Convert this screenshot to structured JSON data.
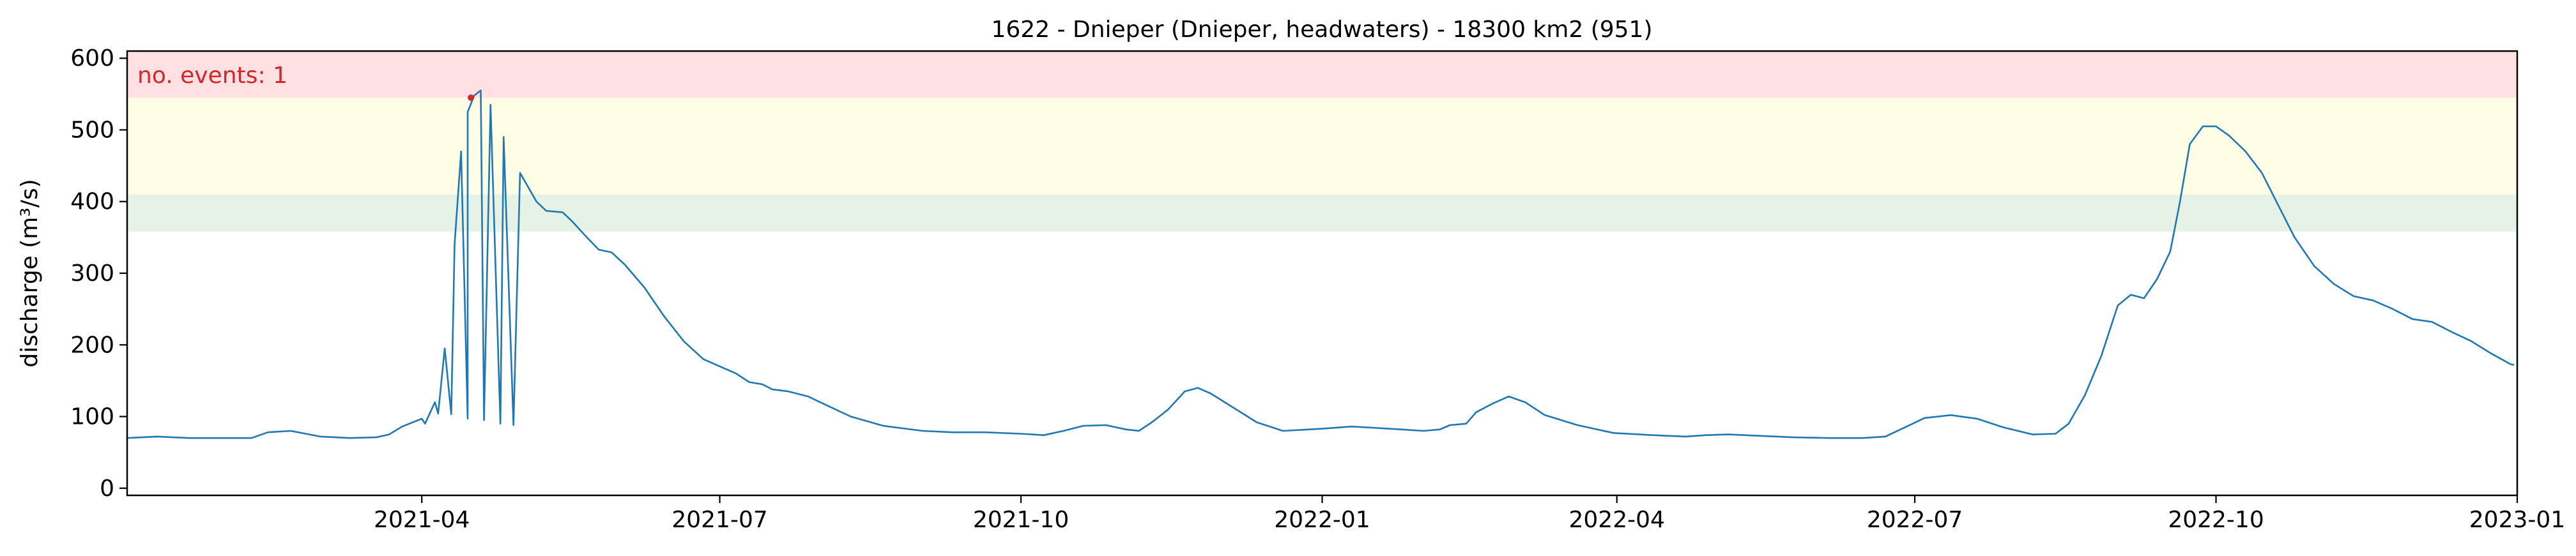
{
  "chart_data": {
    "type": "line",
    "title": "1622 - Dnieper (Dnieper, headwaters) - 18300 km2 (951)",
    "xlabel": "",
    "ylabel": "discharge (m³/s)",
    "xlim": [
      "2021-01-01",
      "2023-01-01"
    ],
    "ylim": [
      -10,
      610
    ],
    "x_ticks": [
      "2021-04",
      "2021-07",
      "2021-10",
      "2022-01",
      "2022-04",
      "2022-07",
      "2022-10",
      "2023-01"
    ],
    "y_ticks": [
      "0",
      "100",
      "200",
      "300",
      "400",
      "500",
      "600"
    ],
    "grid": false,
    "annotation": "no. events: 1",
    "colors": {
      "line": "#1f77b4",
      "event": "#d62728",
      "annotation": "#d62728",
      "band_severe": "#ffe0e3",
      "band_high": "#fffde6",
      "band_moderate": "#e5f2e5"
    },
    "threshold_bands": [
      {
        "from": 545,
        "to": 610,
        "color": "#ffe0e3"
      },
      {
        "from": 410,
        "to": 545,
        "color": "#fffde6"
      },
      {
        "from": 358,
        "to": 410,
        "color": "#e5f2e5"
      }
    ],
    "events": [
      {
        "x": "2021-04-16",
        "y": 545
      }
    ],
    "series": [
      {
        "points": [
          [
            "2021-01-01",
            70
          ],
          [
            "2021-01-10",
            72
          ],
          [
            "2021-01-20",
            70
          ],
          [
            "2021-02-01",
            70
          ],
          [
            "2021-02-08",
            70
          ],
          [
            "2021-02-13",
            78
          ],
          [
            "2021-02-20",
            80
          ],
          [
            "2021-03-01",
            72
          ],
          [
            "2021-03-10",
            70
          ],
          [
            "2021-03-18",
            71
          ],
          [
            "2021-03-22",
            75
          ],
          [
            "2021-03-26",
            86
          ],
          [
            "2021-04-01",
            97
          ],
          [
            "2021-04-06",
            104
          ],
          [
            "2021-04-10",
            103
          ],
          [
            "2021-04-15",
            97
          ],
          [
            "2021-04-20",
            95
          ],
          [
            "2021-04-25",
            90
          ],
          [
            "2021-04-29",
            88
          ],
          [
            "2021-04-02",
            90
          ],
          [
            "2021-04-05",
            120
          ],
          [
            "2021-04-08",
            195
          ],
          [
            "2021-04-11",
            340
          ],
          [
            "2021-04-13",
            470
          ],
          [
            "2021-04-15",
            525
          ],
          [
            "2021-04-17",
            548
          ],
          [
            "2021-04-19",
            555
          ],
          [
            "2021-04-22",
            535
          ],
          [
            "2021-04-26",
            490
          ],
          [
            "2021-05-01",
            440
          ],
          [
            "2021-05-06",
            400
          ],
          [
            "2021-05-09",
            387
          ],
          [
            "2021-05-14",
            385
          ],
          [
            "2021-05-17",
            372
          ],
          [
            "2021-05-21",
            352
          ],
          [
            "2021-05-25",
            333
          ],
          [
            "2021-05-29",
            329
          ],
          [
            "2021-06-02",
            312
          ],
          [
            "2021-06-08",
            280
          ],
          [
            "2021-06-14",
            240
          ],
          [
            "2021-06-20",
            205
          ],
          [
            "2021-06-26",
            180
          ],
          [
            "2021-07-01",
            170
          ],
          [
            "2021-07-06",
            160
          ],
          [
            "2021-07-10",
            148
          ],
          [
            "2021-07-14",
            145
          ],
          [
            "2021-07-17",
            138
          ],
          [
            "2021-07-22",
            135
          ],
          [
            "2021-07-28",
            128
          ],
          [
            "2021-08-03",
            115
          ],
          [
            "2021-08-10",
            100
          ],
          [
            "2021-08-20",
            87
          ],
          [
            "2021-09-01",
            80
          ],
          [
            "2021-09-10",
            78
          ],
          [
            "2021-09-20",
            78
          ],
          [
            "2021-10-01",
            76
          ],
          [
            "2021-10-08",
            74
          ],
          [
            "2021-10-14",
            80
          ],
          [
            "2021-10-20",
            87
          ],
          [
            "2021-10-27",
            88
          ],
          [
            "2021-11-02",
            82
          ],
          [
            "2021-11-06",
            80
          ],
          [
            "2021-11-10",
            92
          ],
          [
            "2021-11-15",
            110
          ],
          [
            "2021-11-20",
            135
          ],
          [
            "2021-11-24",
            140
          ],
          [
            "2021-11-28",
            132
          ],
          [
            "2021-12-05",
            112
          ],
          [
            "2021-12-12",
            92
          ],
          [
            "2021-12-20",
            80
          ],
          [
            "2022-01-01",
            83
          ],
          [
            "2022-01-10",
            86
          ],
          [
            "2022-01-18",
            84
          ],
          [
            "2022-01-25",
            82
          ],
          [
            "2022-02-01",
            80
          ],
          [
            "2022-02-06",
            82
          ],
          [
            "2022-02-09",
            88
          ],
          [
            "2022-02-14",
            90
          ],
          [
            "2022-02-17",
            106
          ],
          [
            "2022-02-22",
            118
          ],
          [
            "2022-02-27",
            128
          ],
          [
            "2022-03-04",
            120
          ],
          [
            "2022-03-10",
            102
          ],
          [
            "2022-03-20",
            88
          ],
          [
            "2022-03-31",
            77
          ],
          [
            "2022-04-12",
            74
          ],
          [
            "2022-04-22",
            72
          ],
          [
            "2022-04-28",
            74
          ],
          [
            "2022-05-05",
            75
          ],
          [
            "2022-05-15",
            73
          ],
          [
            "2022-05-25",
            71
          ],
          [
            "2022-06-05",
            70
          ],
          [
            "2022-06-15",
            70
          ],
          [
            "2022-06-22",
            72
          ],
          [
            "2022-06-28",
            85
          ],
          [
            "2022-07-04",
            98
          ],
          [
            "2022-07-12",
            102
          ],
          [
            "2022-07-20",
            97
          ],
          [
            "2022-07-28",
            85
          ],
          [
            "2022-08-06",
            75
          ],
          [
            "2022-08-13",
            76
          ],
          [
            "2022-08-17",
            90
          ],
          [
            "2022-08-22",
            130
          ],
          [
            "2022-08-27",
            185
          ],
          [
            "2022-09-01",
            255
          ],
          [
            "2022-09-05",
            270
          ],
          [
            "2022-09-09",
            265
          ],
          [
            "2022-09-13",
            292
          ],
          [
            "2022-09-17",
            330
          ],
          [
            "2022-09-20",
            400
          ],
          [
            "2022-09-23",
            480
          ],
          [
            "2022-09-27",
            505
          ],
          [
            "2022-10-01",
            505
          ],
          [
            "2022-10-05",
            492
          ],
          [
            "2022-10-10",
            470
          ],
          [
            "2022-10-15",
            440
          ],
          [
            "2022-10-20",
            395
          ],
          [
            "2022-10-25",
            350
          ],
          [
            "2022-10-31",
            310
          ],
          [
            "2022-11-06",
            285
          ],
          [
            "2022-11-12",
            268
          ],
          [
            "2022-11-18",
            262
          ],
          [
            "2022-11-24",
            250
          ],
          [
            "2022-11-30",
            236
          ],
          [
            "2022-12-06",
            232
          ],
          [
            "2022-12-12",
            218
          ],
          [
            "2022-12-18",
            205
          ],
          [
            "2022-12-24",
            188
          ],
          [
            "2022-12-30",
            173
          ],
          [
            "2022-12-31",
            172
          ]
        ]
      }
    ]
  }
}
